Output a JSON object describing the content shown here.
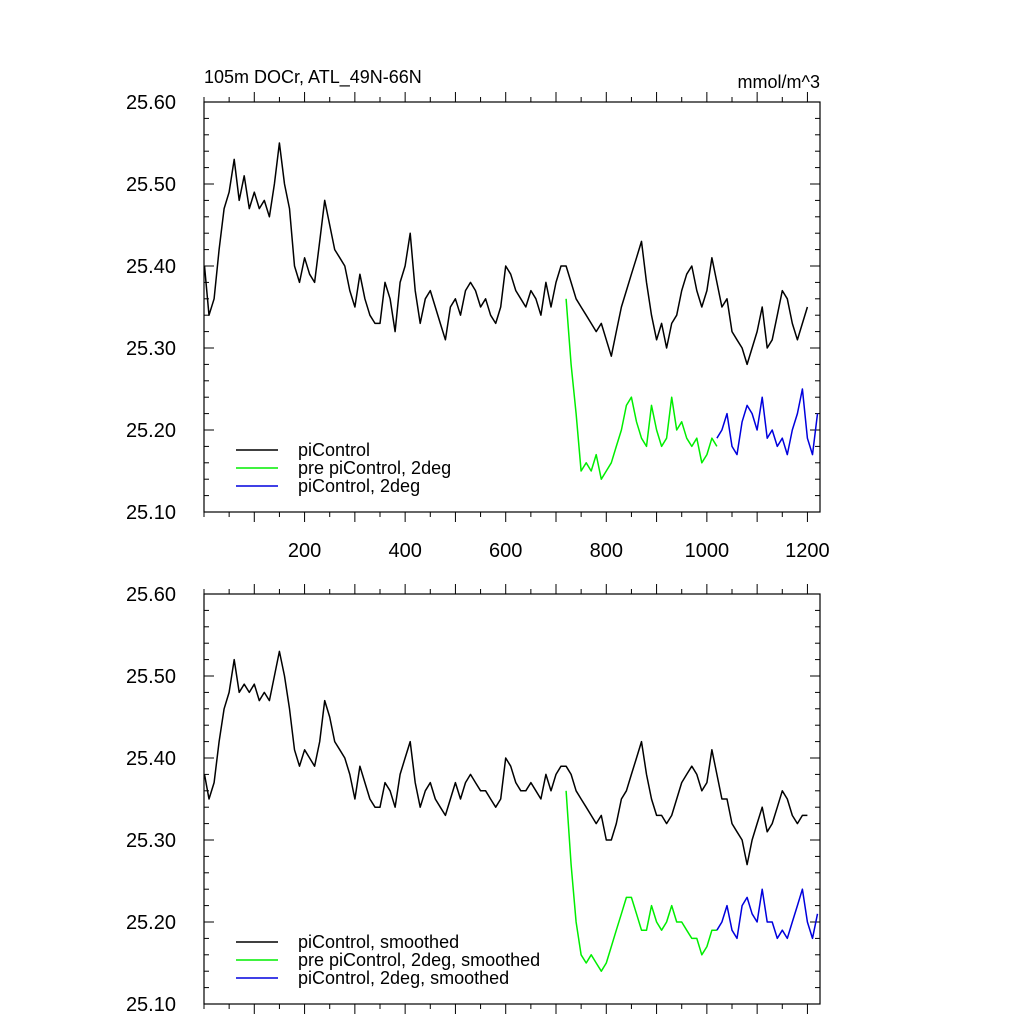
{
  "header": {
    "left_title": "105m DOCr, ATL_49N-66N",
    "right_title": "mmol/m^3"
  },
  "colors": {
    "black": "#000000",
    "green": "#00ee00",
    "blue": "#0000dd"
  },
  "chart_data": [
    {
      "type": "line",
      "title": "105m DOCr, ATL_49N-66N",
      "units": "mmol/m^3",
      "xlim": [
        0,
        1225
      ],
      "ylim": [
        25.1,
        25.6
      ],
      "x_ticks": [
        200,
        400,
        600,
        800,
        1000,
        1200
      ],
      "x_tick_labels": [
        "200",
        "400",
        "600",
        "800",
        "1000",
        "1200"
      ],
      "y_ticks": [
        25.1,
        25.2,
        25.3,
        25.4,
        25.5,
        25.6
      ],
      "y_tick_labels": [
        "25.10",
        "25.20",
        "25.30",
        "25.40",
        "25.50",
        "25.60"
      ],
      "legend_position": "bottom-left",
      "series": [
        {
          "name": "piControl",
          "color": "#000000",
          "x": [
            1,
            10,
            20,
            30,
            40,
            50,
            60,
            70,
            80,
            90,
            100,
            110,
            120,
            130,
            140,
            150,
            160,
            170,
            180,
            190,
            200,
            210,
            220,
            230,
            240,
            250,
            260,
            270,
            280,
            290,
            300,
            310,
            320,
            330,
            340,
            350,
            360,
            370,
            380,
            390,
            400,
            410,
            420,
            430,
            440,
            450,
            460,
            470,
            480,
            490,
            500,
            510,
            520,
            530,
            540,
            550,
            560,
            570,
            580,
            590,
            600,
            610,
            620,
            630,
            640,
            650,
            660,
            670,
            680,
            690,
            700,
            710,
            720,
            730,
            740,
            750,
            760,
            770,
            780,
            790,
            800,
            810,
            820,
            830,
            840,
            850,
            860,
            870,
            880,
            890,
            900,
            910,
            920,
            930,
            940,
            950,
            960,
            970,
            980,
            990,
            1000,
            1010,
            1020,
            1030,
            1040,
            1050,
            1060,
            1070,
            1080,
            1090,
            1100,
            1110,
            1120,
            1130,
            1140,
            1150,
            1160,
            1170,
            1180,
            1190,
            1200
          ],
          "y": [
            25.4,
            25.34,
            25.36,
            25.42,
            25.47,
            25.49,
            25.53,
            25.48,
            25.51,
            25.47,
            25.49,
            25.47,
            25.48,
            25.46,
            25.5,
            25.55,
            25.5,
            25.47,
            25.4,
            25.38,
            25.41,
            25.39,
            25.38,
            25.43,
            25.48,
            25.45,
            25.42,
            25.41,
            25.4,
            25.37,
            25.35,
            25.39,
            25.36,
            25.34,
            25.33,
            25.33,
            25.38,
            25.36,
            25.32,
            25.38,
            25.4,
            25.44,
            25.37,
            25.33,
            25.36,
            25.37,
            25.35,
            25.33,
            25.31,
            25.35,
            25.36,
            25.34,
            25.37,
            25.38,
            25.37,
            25.35,
            25.36,
            25.34,
            25.33,
            25.35,
            25.4,
            25.39,
            25.37,
            25.36,
            25.35,
            25.37,
            25.36,
            25.34,
            25.38,
            25.35,
            25.38,
            25.4,
            25.4,
            25.38,
            25.36,
            25.35,
            25.34,
            25.33,
            25.32,
            25.33,
            25.31,
            25.29,
            25.32,
            25.35,
            25.37,
            25.39,
            25.41,
            25.43,
            25.38,
            25.34,
            25.31,
            25.33,
            25.3,
            25.33,
            25.34,
            25.37,
            25.39,
            25.4,
            25.37,
            25.35,
            25.37,
            25.41,
            25.38,
            25.35,
            25.36,
            25.32,
            25.31,
            25.3,
            25.28,
            25.3,
            25.32,
            25.35,
            25.3,
            25.31,
            25.34,
            25.37,
            25.36,
            25.33,
            25.31,
            25.33,
            25.35
          ]
        },
        {
          "name": "pre piControl, 2deg",
          "color": "#00ee00",
          "x": [
            720,
            730,
            740,
            750,
            760,
            770,
            780,
            790,
            800,
            810,
            820,
            830,
            840,
            850,
            860,
            870,
            880,
            890,
            900,
            910,
            920,
            930,
            940,
            950,
            960,
            970,
            980,
            990,
            1000,
            1010,
            1020
          ],
          "y": [
            25.36,
            25.28,
            25.22,
            25.15,
            25.16,
            25.15,
            25.17,
            25.14,
            25.15,
            25.16,
            25.18,
            25.2,
            25.23,
            25.24,
            25.21,
            25.19,
            25.18,
            25.23,
            25.2,
            25.18,
            25.19,
            25.24,
            25.2,
            25.21,
            25.19,
            25.18,
            25.19,
            25.16,
            25.17,
            25.19,
            25.18
          ]
        },
        {
          "name": "piControl, 2deg",
          "color": "#0000dd",
          "x": [
            1020,
            1030,
            1040,
            1050,
            1060,
            1070,
            1080,
            1090,
            1100,
            1110,
            1120,
            1130,
            1140,
            1150,
            1160,
            1170,
            1180,
            1190,
            1200,
            1210,
            1220
          ],
          "y": [
            25.19,
            25.2,
            25.22,
            25.18,
            25.17,
            25.21,
            25.23,
            25.22,
            25.2,
            25.24,
            25.19,
            25.2,
            25.18,
            25.19,
            25.17,
            25.2,
            25.22,
            25.25,
            25.19,
            25.17,
            25.22
          ]
        }
      ]
    },
    {
      "type": "line",
      "xlim": [
        0,
        1225
      ],
      "ylim": [
        25.1,
        25.6
      ],
      "y_ticks": [
        25.1,
        25.2,
        25.3,
        25.4,
        25.5,
        25.6
      ],
      "y_tick_labels": [
        "25.10",
        "25.20",
        "25.30",
        "25.40",
        "25.50",
        "25.60"
      ],
      "legend_position": "bottom-left",
      "series": [
        {
          "name": "piControl, smoothed",
          "color": "#000000",
          "x": [
            1,
            10,
            20,
            30,
            40,
            50,
            60,
            70,
            80,
            90,
            100,
            110,
            120,
            130,
            140,
            150,
            160,
            170,
            180,
            190,
            200,
            210,
            220,
            230,
            240,
            250,
            260,
            270,
            280,
            290,
            300,
            310,
            320,
            330,
            340,
            350,
            360,
            370,
            380,
            390,
            400,
            410,
            420,
            430,
            440,
            450,
            460,
            470,
            480,
            490,
            500,
            510,
            520,
            530,
            540,
            550,
            560,
            570,
            580,
            590,
            600,
            610,
            620,
            630,
            640,
            650,
            660,
            670,
            680,
            690,
            700,
            710,
            720,
            730,
            740,
            750,
            760,
            770,
            780,
            790,
            800,
            810,
            820,
            830,
            840,
            850,
            860,
            870,
            880,
            890,
            900,
            910,
            920,
            930,
            940,
            950,
            960,
            970,
            980,
            990,
            1000,
            1010,
            1020,
            1030,
            1040,
            1050,
            1060,
            1070,
            1080,
            1090,
            1100,
            1110,
            1120,
            1130,
            1140,
            1150,
            1160,
            1170,
            1180,
            1190,
            1200
          ],
          "y": [
            25.38,
            25.35,
            25.37,
            25.42,
            25.46,
            25.48,
            25.52,
            25.48,
            25.49,
            25.48,
            25.49,
            25.47,
            25.48,
            25.47,
            25.5,
            25.53,
            25.5,
            25.46,
            25.41,
            25.39,
            25.41,
            25.4,
            25.39,
            25.42,
            25.47,
            25.45,
            25.42,
            25.41,
            25.4,
            25.38,
            25.35,
            25.39,
            25.37,
            25.35,
            25.34,
            25.34,
            25.37,
            25.36,
            25.34,
            25.38,
            25.4,
            25.42,
            25.37,
            25.34,
            25.36,
            25.37,
            25.35,
            25.34,
            25.33,
            25.35,
            25.37,
            25.35,
            25.37,
            25.38,
            25.37,
            25.36,
            25.36,
            25.35,
            25.34,
            25.35,
            25.4,
            25.39,
            25.37,
            25.36,
            25.36,
            25.37,
            25.36,
            25.35,
            25.38,
            25.36,
            25.38,
            25.39,
            25.39,
            25.38,
            25.36,
            25.35,
            25.34,
            25.33,
            25.32,
            25.33,
            25.3,
            25.3,
            25.32,
            25.35,
            25.36,
            25.38,
            25.4,
            25.42,
            25.38,
            25.35,
            25.33,
            25.33,
            25.32,
            25.33,
            25.35,
            25.37,
            25.38,
            25.39,
            25.38,
            25.36,
            25.37,
            25.41,
            25.38,
            25.35,
            25.35,
            25.32,
            25.31,
            25.3,
            25.27,
            25.3,
            25.32,
            25.34,
            25.31,
            25.32,
            25.34,
            25.36,
            25.35,
            25.33,
            25.32,
            25.33,
            25.33
          ]
        },
        {
          "name": "pre piControl, 2deg, smoothed",
          "color": "#00ee00",
          "x": [
            720,
            730,
            740,
            750,
            760,
            770,
            780,
            790,
            800,
            810,
            820,
            830,
            840,
            850,
            860,
            870,
            880,
            890,
            900,
            910,
            920,
            930,
            940,
            950,
            960,
            970,
            980,
            990,
            1000,
            1010,
            1020
          ],
          "y": [
            25.36,
            25.27,
            25.2,
            25.16,
            25.15,
            25.16,
            25.15,
            25.14,
            25.15,
            25.17,
            25.19,
            25.21,
            25.23,
            25.23,
            25.21,
            25.19,
            25.19,
            25.22,
            25.2,
            25.19,
            25.2,
            25.22,
            25.2,
            25.2,
            25.19,
            25.18,
            25.18,
            25.16,
            25.17,
            25.19,
            25.19
          ]
        },
        {
          "name": "piControl, 2deg, smoothed",
          "color": "#0000dd",
          "x": [
            1020,
            1030,
            1040,
            1050,
            1060,
            1070,
            1080,
            1090,
            1100,
            1110,
            1120,
            1130,
            1140,
            1150,
            1160,
            1170,
            1180,
            1190,
            1200,
            1210,
            1220
          ],
          "y": [
            25.19,
            25.2,
            25.22,
            25.19,
            25.18,
            25.22,
            25.23,
            25.21,
            25.2,
            25.24,
            25.2,
            25.2,
            25.18,
            25.19,
            25.18,
            25.2,
            25.22,
            25.24,
            25.2,
            25.18,
            25.21
          ]
        }
      ]
    }
  ]
}
